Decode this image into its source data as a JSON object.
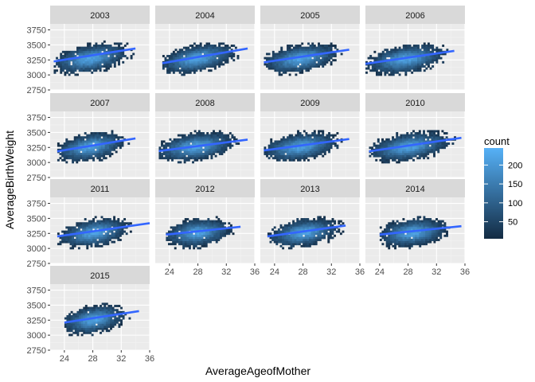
{
  "chart_data": {
    "type": "heatmap",
    "xlabel": "AverageAgeofMother",
    "ylabel": "AverageBirthWeight",
    "xlim": [
      22,
      36
    ],
    "ylim": [
      2750,
      3850
    ],
    "x_ticks": [
      24,
      28,
      32,
      36
    ],
    "y_ticks": [
      2750,
      3000,
      3250,
      3500,
      3750
    ],
    "grid": true,
    "legend": {
      "title": "count",
      "placement": "right",
      "ticks": [
        50,
        100,
        150,
        200
      ],
      "range": [
        5,
        245
      ],
      "color_low": "#132B43",
      "color_high": "#56B1F7"
    },
    "trend_color": "#3366FF",
    "panel_background": "#EBEBEB",
    "strip_background": "#D9D9D9",
    "panels": [
      {
        "label": "2003",
        "fit": {
          "x0": 22.5,
          "y0": 3225,
          "x1": 34.0,
          "y1": 3440
        },
        "x_range": [
          22.5,
          34.5
        ],
        "center": [
          27.5,
          3290
        ]
      },
      {
        "label": "2004",
        "fit": {
          "x0": 23.0,
          "y0": 3195,
          "x1": 35.0,
          "y1": 3440
        },
        "x_range": [
          23.0,
          35.0
        ],
        "center": [
          27.8,
          3290
        ]
      },
      {
        "label": "2005",
        "fit": {
          "x0": 22.5,
          "y0": 3210,
          "x1": 34.5,
          "y1": 3420
        },
        "x_range": [
          22.5,
          34.5
        ],
        "center": [
          27.5,
          3290
        ]
      },
      {
        "label": "2006",
        "fit": {
          "x0": 22.0,
          "y0": 3185,
          "x1": 34.5,
          "y1": 3400
        },
        "x_range": [
          22.0,
          34.5
        ],
        "center": [
          27.5,
          3280
        ]
      },
      {
        "label": "2007",
        "fit": {
          "x0": 23.0,
          "y0": 3185,
          "x1": 34.0,
          "y1": 3400
        },
        "x_range": [
          23.0,
          34.0
        ],
        "center": [
          27.5,
          3280
        ]
      },
      {
        "label": "2008",
        "fit": {
          "x0": 22.5,
          "y0": 3190,
          "x1": 35.0,
          "y1": 3380
        },
        "x_range": [
          22.5,
          35.0
        ],
        "center": [
          27.5,
          3280
        ]
      },
      {
        "label": "2009",
        "fit": {
          "x0": 22.5,
          "y0": 3200,
          "x1": 34.5,
          "y1": 3390
        },
        "x_range": [
          22.5,
          34.5
        ],
        "center": [
          27.5,
          3280
        ]
      },
      {
        "label": "2010",
        "fit": {
          "x0": 22.5,
          "y0": 3185,
          "x1": 35.5,
          "y1": 3410
        },
        "x_range": [
          22.5,
          35.5
        ],
        "center": [
          28.0,
          3280
        ]
      },
      {
        "label": "2011",
        "fit": {
          "x0": 23.0,
          "y0": 3200,
          "x1": 36.0,
          "y1": 3420
        },
        "x_range": [
          23.0,
          34.0
        ],
        "center": [
          28.0,
          3280
        ]
      },
      {
        "label": "2012",
        "fit": {
          "x0": 23.5,
          "y0": 3230,
          "x1": 34.0,
          "y1": 3360
        },
        "x_range": [
          23.5,
          34.0
        ],
        "center": [
          27.8,
          3280
        ]
      },
      {
        "label": "2013",
        "fit": {
          "x0": 23.0,
          "y0": 3200,
          "x1": 34.0,
          "y1": 3380
        },
        "x_range": [
          23.0,
          34.0
        ],
        "center": [
          28.0,
          3280
        ]
      },
      {
        "label": "2014",
        "fit": {
          "x0": 24.0,
          "y0": 3230,
          "x1": 35.5,
          "y1": 3370
        },
        "x_range": [
          24.0,
          35.0
        ],
        "center": [
          28.5,
          3280
        ]
      },
      {
        "label": "2015",
        "fit": {
          "x0": 24.0,
          "y0": 3210,
          "x1": 34.5,
          "y1": 3400
        },
        "x_range": [
          24.0,
          34.0
        ],
        "center": [
          28.0,
          3280
        ]
      }
    ]
  }
}
